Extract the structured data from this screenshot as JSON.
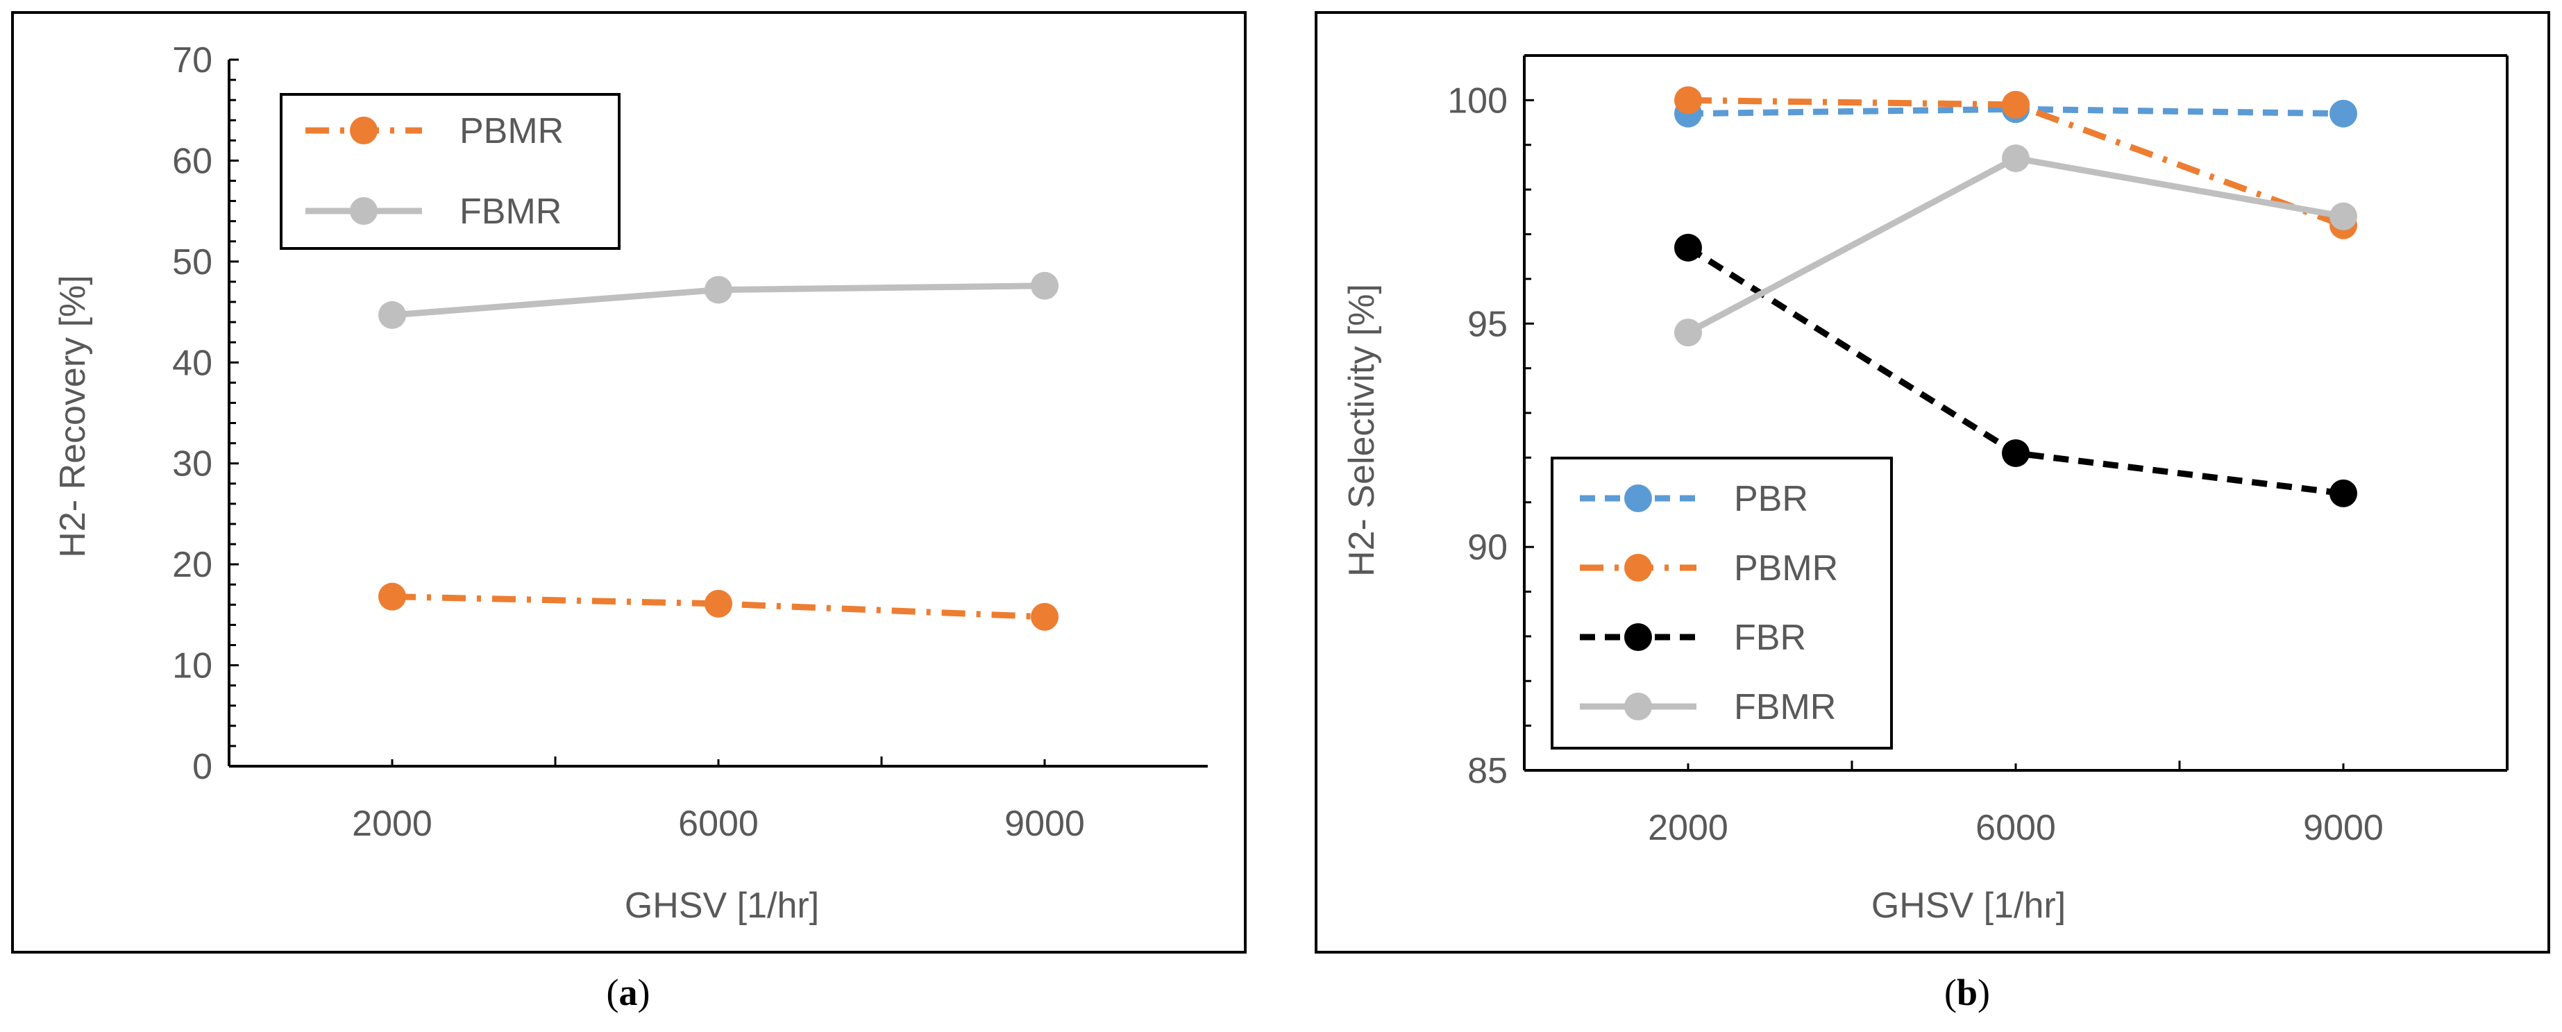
{
  "chart_data": [
    {
      "type": "line",
      "caption_letter": "a",
      "caption_prefix": "(",
      "caption_suffix": ")",
      "xlabel": "GHSV [1/hr]",
      "ylabel": "H2- Recovery  [%]",
      "categories": [
        "2000",
        "6000",
        "9000"
      ],
      "ylim": [
        0,
        70
      ],
      "yticks": [
        "0",
        "10",
        "20",
        "30",
        "40",
        "50",
        "60",
        "70"
      ],
      "legend_position": "top-left",
      "grid": false,
      "series": [
        {
          "name": "PBMR",
          "color": "#ED7D31",
          "dash": "dash-dot",
          "values": [
            16.8,
            16.1,
            14.8
          ]
        },
        {
          "name": "FBMR",
          "color": "#BFBFBF",
          "dash": "solid",
          "values": [
            44.7,
            47.2,
            47.6
          ]
        }
      ]
    },
    {
      "type": "line",
      "caption_letter": "b",
      "caption_prefix": "(",
      "caption_suffix": ")",
      "xlabel": "GHSV [1/hr]",
      "ylabel": "H2- Selectivity [%]",
      "categories": [
        "2000",
        "6000",
        "9000"
      ],
      "ylim": [
        85,
        101
      ],
      "yticks": [
        "85",
        "90",
        "95",
        "100"
      ],
      "legend_position": "bottom-left",
      "grid": false,
      "series": [
        {
          "name": "PBR",
          "color": "#5B9BD5",
          "dash": "dashed",
          "values": [
            99.7,
            99.8,
            99.7
          ]
        },
        {
          "name": "PBMR",
          "color": "#ED7D31",
          "dash": "dash-dot",
          "values": [
            100.0,
            99.9,
            97.2
          ]
        },
        {
          "name": "FBR",
          "color": "#000000",
          "dash": "dashed",
          "values": [
            96.7,
            92.1,
            91.2
          ]
        },
        {
          "name": "FBMR",
          "color": "#BFBFBF",
          "dash": "solid",
          "values": [
            94.8,
            98.7,
            97.4
          ]
        }
      ]
    }
  ]
}
